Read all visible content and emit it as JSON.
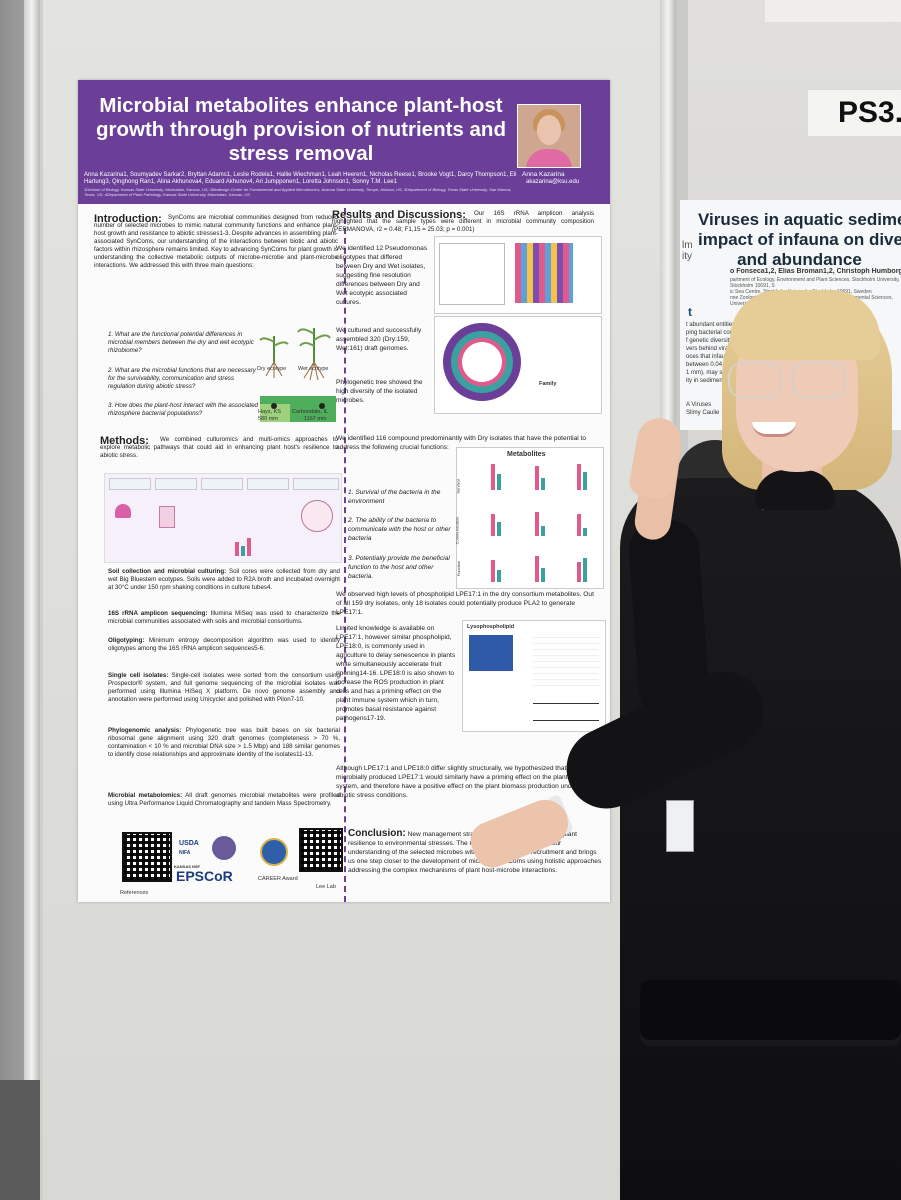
{
  "poster": {
    "title": "Microbial metabolites enhance plant-host growth through provision of nutrients and stress removal",
    "authors": "Anna Kazarina1, Soumyadev Sarkar2, Bryttan Adams1, Leslie Rodela1, Hallie Wiechman1, Leah Heeren1, Nicholas Reese1, Brooke Vogt1, Darcy Thompson1, Eli Hartung3, Qinghong Ran1, Alina Akhunova4, Eduard Akhunov4, Ari Jumpponen1, Loretta Johnson1, Sonny T.M. Lee1",
    "affiliations": "1Division of Biology, Kansas State University, Manhattan, Kansas, US; 2Biodesign Center for Fundamental and Applied Microbiomics, Arizona State University, Tempe, Arizona, US; 3Department of Biology, Texas State University, San Marcos, Texas, US; 4Department of Plant Pathology, Kansas State University, Manhattan, Kansas, US",
    "presenter_name": "Anna Kazarina",
    "presenter_email": "akazarina@ksu.edu",
    "intro_head": "Introduction:",
    "intro_body": "SynComs are microbial communities designed from reduced number of selected microbes to mimic natural community functions and enhance plant-host growth and resistance to abiotic stresses1-3. Despite advances in assembling plant-associated SynComs, our understanding of the interactions between biotic and abiotic factors within rhizosphere remains limited. Key to advancing SynComs for plant growth is understanding the collective metabolic outputs of microbe-microbe and plant-microbe interactions. We addressed this with three main questions:",
    "q1": "1. What are the functional potential differences in microbial members between the dry and wet ecotypic rhizobiome?",
    "q2": "2. What are the microbial functions that are necessary for the survivability, communication and stress regulation during abiotic stress?",
    "q3": "3. How does the plant-host interact with the associated rhizosphere bacterial populations?",
    "dry_label": "Dry ecotype",
    "wet_label": "Wet ecotype",
    "hays_label": "Hays, KS",
    "hays_mm": "580 mm",
    "carbondale_label": "Carbondale, IL",
    "carbondale_mm": "1167 mm",
    "methods_head": "Methods:",
    "methods_body": "We combined culturomics and multi-omics approaches to explore metabolic pathways that could aid in enhancing plant host's resilience to abiotic stress.",
    "soil_head": "Soil collection and microbial culturing:",
    "soil_body": "Soil cores were collected from dry and wet Big Bluestem ecotypes. Soils were added to R2A broth and incubated overnight at 30°C under 150 rpm shaking conditions in culture tubes4.",
    "amplicon_head": "16S rRNA amplicon sequencing:",
    "amplicon_body": "Illumina MiSeq was used to characterize the microbial communities associated with soils and microbial consortiums.",
    "oligo_head": "Oligotyping:",
    "oligo_body": "Minimum entropy decomposition algorithm was used to identify oligotypes among the 16S rRNA amplicon sequences5-6.",
    "single_head": "Single cell isolates:",
    "single_body": "Single-cell isolates were sorted from the consortium using Prospector® system, and full genome sequencing of the microbial isolates was performed using Illumina HiSeq X platform. De novo genome assembly and annotation were performed using Unicycler and polished with Pilon7-10.",
    "phylo_head": "Phylogenomic analysis:",
    "phylo_body": "Phylogenetic tree was built bases on six bacterial ribosomal gene alignment using 320 draft genomes (completeness > 70 %, contamination < 10 % and microbial DNA size > 1.5 Mbp) and 188 similar genomes to identify close relationships and approximate identity of the isolates11-13.",
    "metab_head": "Microbial metabolomics:",
    "metab_body": "All draft genomes microbial metabolites were profiled using Ultra Performance Liquid Chromatography and tandem Mass Spectrometry.",
    "results_head": "Results and Discussions:",
    "results_body": "Our 16S rRNA amplicon analysis highlighted that the sample types were different in microbial community composition (PERMANOVA, r2 = 0.48; F1,15 = 25.03; p = 0.001)",
    "oligo_result": "We identified 12 Pseudomonas oligotypes that differed between Dry and Wet isolates, suggesting fine resolution differences between Dry and Wet ecotypic associated cultures.",
    "cultured_result": "We cultured and successfully assembled 320 (Dry:159, Wet:161) draft genomes.",
    "phylo_result": "Phylogenetic tree showed the high diversity of the isolated microbes.",
    "compound_result": "We identified 116 compound predominantly with Dry isolates that have the potential to address the following crucial functions:",
    "func1": "1. Survival of the bacteria in the environment",
    "func2": "2. The ability of the bacteria to communicate with the host or other bacteria",
    "func3": "3. Potentially provide the beneficial function to the host and other bacteria.",
    "metabolites_title": "Metabolites",
    "lpe_result": "We observed high levels of phospholipid LPE17:1 in the dry consortium metabolites. Out of all 159 dry isolates, only 18 isolates could potentially produce PLA2 to generate LPE17:1.",
    "limited_result": "Limited knowledge is available on LPE17:1, however similar phospholipid, LPE18:0, is commonly used in agriculture to delay senescence in plants while simultaneously accelerate fruit ripening14-16. LPE18:0 is also shown to increase the ROS production in plant cells and has a priming effect on the plant immune system which in turn, promotes basal resistance against pathogens17-19.",
    "although_result": "Although LPE17:1 and LPE18:0 differ slightly structurally, we hypothesized that microbially produced LPE17:1 would similarly have a priming effect on the plant immune system, and therefore have a positive effect on the plant biomass production under abiotic stress conditions.",
    "concl_head": "Conclusion:",
    "concl_body": "New management strategies are needed to increase plant resilience to environmental stresses. The results of this study deepen our understanding of the selected microbes within the rhizosphere recruitment and brings us one step closer to the development of microbial SynComs using holistic approaches addressing the complex mechanisms of plant host-microbe interactions.",
    "usda": "USDA",
    "nifa": "NIFA",
    "epscor": "EPSCoR",
    "kansas_nsf": "KANSAS NSF",
    "career": "CAREER Award",
    "references": "References",
    "lee_lab": "Lee Lab",
    "survival_axis": "Survival",
    "communication_axis": "Communication",
    "function_axis": "Function",
    "lysophospholipid": "Lysophospholipid",
    "family_label": "Family"
  },
  "neighbor_poster": {
    "session_code": "PS3.",
    "title_line1": "Viruses in aquatic sedime",
    "title_line2": "impact of infauna on divers",
    "title_line3": "and abundance",
    "authors": "o Fonseca1,2, Elias Broman1,2, Christoph Humborg2,3 and Francisco J.A. Nascime",
    "affil1": "partment of Ecology, Environment and Plant Sciences, Stockholm University, Stockholm 10691, S",
    "affil2": "ic Sea Centre, Stockholm University, Stockholm 10691, Sweden",
    "affil3": "nne Zoological Station, Faculty of Biological and Environmental Sciences, University of Helsink",
    "side_text1": "lm",
    "side_text2": "ity",
    "section_char": "t",
    "frag1": "t abundant entities in aqu",
    "frag2": "ping bacterial communi",
    "frag3": "f genetic diversity (Che",
    "frag4": "vers behind viral comm",
    "frag5": "oces that infauna, spe",
    "frag6": "between 0.04 mm and",
    "frag7": "1 mm), may significan",
    "frag8": "ity in sediments",
    "frag9": "A Viruses",
    "frag10": "Slimy Caulie"
  },
  "colors": {
    "header_purple": "#6b3f98",
    "divider_purple": "#6b3f98",
    "bar_pink": "#e05a8b",
    "bar_teal": "#3aa0a0",
    "map_green": "#4fae5b",
    "neighbor_title": "#1a2b3c"
  }
}
